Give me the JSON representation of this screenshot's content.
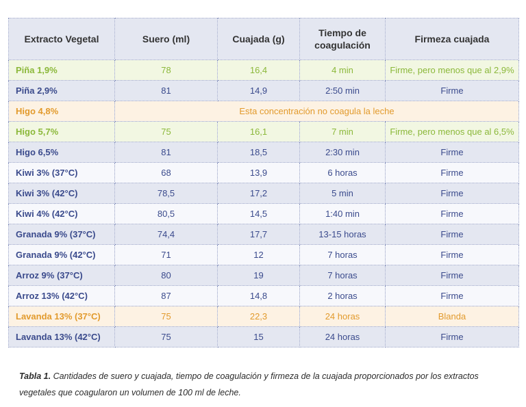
{
  "table": {
    "headers": [
      "Extracto Vegetal",
      "Suero (ml)",
      "Cuajada (g)",
      "Tiempo de coagulación",
      "Firmeza cuajada"
    ],
    "rows": [
      {
        "style": "green",
        "name": "Piña 1,9%",
        "suero": "78",
        "cuajada": "16,4",
        "tiempo": "4 min",
        "firmeza": "Firme, pero menos que al 2,9%"
      },
      {
        "style": "blue",
        "name": "Piña 2,9%",
        "suero": "81",
        "cuajada": "14,9",
        "tiempo": "2:50 min",
        "firmeza": "Firme"
      },
      {
        "style": "orange",
        "name": "Higo 4,8%",
        "merged": "Esta concentración no coagula la leche"
      },
      {
        "style": "green",
        "name": "Higo 5,7%",
        "suero": "75",
        "cuajada": "16,1",
        "tiempo": "7 min",
        "firmeza": "Firme, pero menos que al 6,5%"
      },
      {
        "style": "blue",
        "name": "Higo 6,5%",
        "suero": "81",
        "cuajada": "18,5",
        "tiempo": "2:30 min",
        "firmeza": "Firme"
      },
      {
        "style": "white",
        "name": "Kiwi 3% (37°C)",
        "suero": "68",
        "cuajada": "13,9",
        "tiempo": "6 horas",
        "firmeza": "Firme"
      },
      {
        "style": "blue",
        "name": "Kiwi 3% (42°C)",
        "suero": "78,5",
        "cuajada": "17,2",
        "tiempo": "5 min",
        "firmeza": "Firme"
      },
      {
        "style": "white",
        "name": "Kiwi 4% (42°C)",
        "suero": "80,5",
        "cuajada": "14,5",
        "tiempo": "1:40 min",
        "firmeza": "Firme"
      },
      {
        "style": "blue",
        "name": "Granada 9% (37°C)",
        "suero": "74,4",
        "cuajada": "17,7",
        "tiempo": "13-15 horas",
        "firmeza": "Firme"
      },
      {
        "style": "white",
        "name": "Granada 9% (42°C)",
        "suero": "71",
        "cuajada": "12",
        "tiempo": "7 horas",
        "firmeza": "Firme"
      },
      {
        "style": "blue",
        "name": "Arroz 9% (37°C)",
        "suero": "80",
        "cuajada": "19",
        "tiempo": "7 horas",
        "firmeza": "Firme"
      },
      {
        "style": "white",
        "name": "Arroz 13% (42°C)",
        "suero": "87",
        "cuajada": "14,8",
        "tiempo": "2 horas",
        "firmeza": "Firme"
      },
      {
        "style": "orange",
        "name": "Lavanda 13% (37°C)",
        "suero": "75",
        "cuajada": "22,3",
        "tiempo": "24 horas",
        "firmeza": "Blanda"
      },
      {
        "style": "blue",
        "name": "Lavanda 13% (42°C)",
        "suero": "75",
        "cuajada": "15",
        "tiempo": "24 horas",
        "firmeza": "Firme"
      }
    ]
  },
  "caption": {
    "label": "Tabla 1.",
    "text": "Cantidades de suero y cuajada, tiempo de coagulación y firmeza de la cuajada proporcionados por los extractos vegetales que coagularon un volumen de 100 ml de leche."
  }
}
